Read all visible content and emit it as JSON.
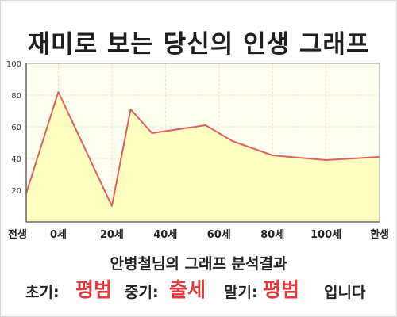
{
  "title": "재미로 보는 당신의 인생 그래프",
  "chart_data": {
    "type": "area",
    "x": [
      "전생",
      "0세",
      "20세",
      "40세",
      "60세",
      "80세",
      "100세",
      "환생"
    ],
    "points": [
      {
        "x": -12,
        "y": 18
      },
      {
        "x": 0,
        "y": 82
      },
      {
        "x": 20,
        "y": 10
      },
      {
        "x": 27,
        "y": 71
      },
      {
        "x": 35,
        "y": 56
      },
      {
        "x": 47,
        "y": 59
      },
      {
        "x": 55,
        "y": 61
      },
      {
        "x": 65,
        "y": 51
      },
      {
        "x": 80,
        "y": 42
      },
      {
        "x": 100,
        "y": 39
      },
      {
        "x": 120,
        "y": 41
      }
    ],
    "ylim": [
      0,
      100
    ],
    "yticks": [
      "20",
      "40",
      "60",
      "80",
      "100"
    ],
    "ytick_values": [
      20,
      40,
      60,
      80,
      100
    ],
    "grid": true,
    "colors": {
      "line": "#e06060",
      "fill": "#ffffc2",
      "plot_bg": "#fffff0",
      "grid": "#e8e8c8"
    }
  },
  "summary": {
    "heading": "안병철님의 그래프 분석결과",
    "early_label": "초기:",
    "early_value": "평범",
    "middle_label": "중기:",
    "middle_value": "출세",
    "late_label": "말기:",
    "late_value": "평범",
    "ending": "입니다"
  }
}
